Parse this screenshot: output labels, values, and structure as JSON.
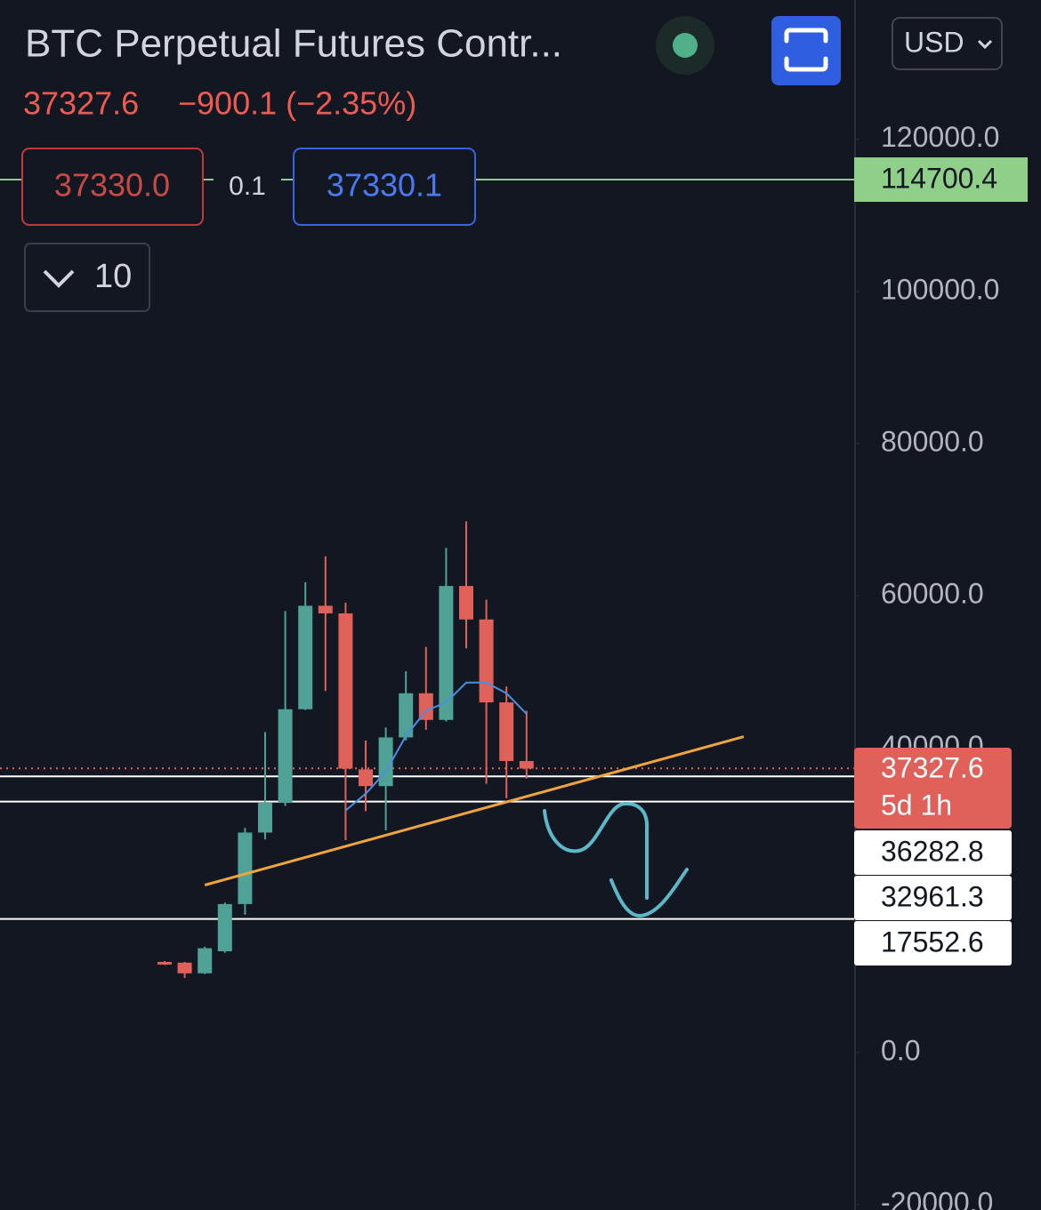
{
  "header": {
    "title": "BTC Perpetual Futures Contr...",
    "price": "37327.6",
    "change": "−900.1 (−2.35%)",
    "currency": "USD",
    "bid": "37330.0",
    "spread": "0.1",
    "ask": "37330.1",
    "quantity": "10"
  },
  "chart_data": {
    "type": "candlestick",
    "ylim": [
      -20700,
      138300
    ],
    "yticks": [
      {
        "value": 120000,
        "label": "120000.0"
      },
      {
        "value": 100000,
        "label": "100000.0"
      },
      {
        "value": 80000,
        "label": "80000.0"
      },
      {
        "value": 60000,
        "label": "60000.0"
      },
      {
        "value": 40000,
        "label": "40000.0"
      },
      {
        "value": 0,
        "label": "0.0"
      },
      {
        "value": -20000,
        "label": "-20000.0"
      }
    ],
    "up_color": "#4fa295",
    "down_color": "#e0605a",
    "open": [
      11900,
      11800,
      10400,
      13300,
      19500,
      28900,
      32800,
      45100,
      58700,
      57700,
      37200,
      35000,
      41400,
      47200,
      43700,
      61300,
      56900,
      46000,
      38300
    ],
    "high": [
      12000,
      11900,
      13900,
      19700,
      29500,
      42100,
      58000,
      61800,
      65200,
      59100,
      41000,
      42700,
      50100,
      53300,
      66300,
      69800,
      59500,
      48100,
      44900
    ],
    "low": [
      11500,
      9800,
      10300,
      13100,
      18100,
      28000,
      32400,
      45000,
      47500,
      27900,
      31700,
      29200,
      41000,
      42400,
      43500,
      53100,
      35300,
      33400,
      36000
    ],
    "close": [
      11800,
      10400,
      13700,
      19500,
      28900,
      32800,
      45100,
      58700,
      57700,
      37300,
      35000,
      41400,
      47200,
      43700,
      61300,
      56900,
      46000,
      38300,
      37300
    ],
    "ma": {
      "color": "#4a90e2",
      "values": [
        null,
        null,
        null,
        null,
        null,
        null,
        null,
        null,
        null,
        31800,
        34000,
        36900,
        41600,
        44900,
        46000,
        48600,
        48600,
        47200,
        44500
      ]
    },
    "trendline": {
      "color": "#f0a53c",
      "x": [
        2,
        28.8
      ],
      "values": [
        22000,
        41500
      ]
    },
    "last_price": 37327.6,
    "countdown": "5d 1h",
    "last_color": "#e0605a",
    "levels": [
      {
        "value": 114700.4,
        "color": "#8fcf8a"
      },
      {
        "value": 36282.8,
        "color": "#ffffff"
      },
      {
        "value": 32961.3,
        "color": "#ffffff"
      },
      {
        "value": 17552.6,
        "color": "#ffffff"
      }
    ]
  }
}
